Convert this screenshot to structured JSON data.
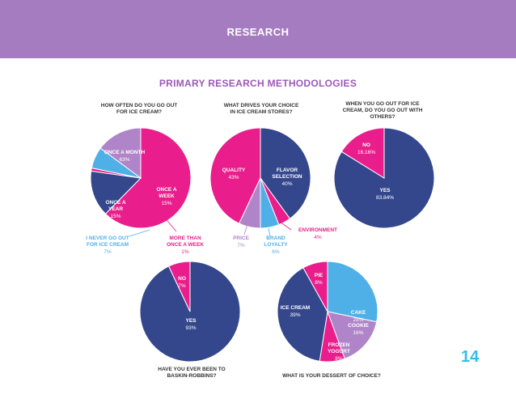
{
  "header": {
    "title": "RESEARCH",
    "subtitle": "PRIMARY RESEARCH METHODOLOGIES",
    "page_number": "14"
  },
  "colors": {
    "banner": "#a57cc0",
    "subtitle": "#9b59b6",
    "page_number": "#2ec0e6",
    "magenta": "#e91e8c",
    "navy": "#34478c",
    "lavender": "#b084c8",
    "lightblue": "#4fb0e8",
    "question": "#333333"
  },
  "chart_data": [
    {
      "type": "pie",
      "title": [
        "HOW OFTEN DO YOU GO OUT",
        "FOR ICE CREAM?"
      ],
      "slices": [
        {
          "label": [
            "ONCE A MONTH"
          ],
          "percent": "63%",
          "value": 63,
          "color": "#e91e8c",
          "text_color": "#ffffff"
        },
        {
          "label": [
            "ONCE A",
            "WEEK"
          ],
          "percent": "15%",
          "value": 15,
          "color": "#34478c",
          "text_color": "#ffffff"
        },
        {
          "label": [
            "MORE THAN",
            "ONCE A WEEK"
          ],
          "percent": "1%",
          "value": 1,
          "color": "#e91e8c",
          "text_color": "#e91e8c"
        },
        {
          "label": [
            "I NEVER GO OUT",
            "FOR ICE CREAM"
          ],
          "percent": "7%",
          "value": 7,
          "color": "#4fb0e8",
          "text_color": "#4fb0e8"
        },
        {
          "label": [
            "ONCE A",
            "YEAR"
          ],
          "percent": "15%",
          "value": 15,
          "color": "#b084c8",
          "text_color": "#ffffff"
        }
      ]
    },
    {
      "type": "pie",
      "title": [
        "WHAT DRIVES YOUR CHOICE",
        "IN ICE CREAM STORES?"
      ],
      "slices": [
        {
          "label": [
            "FLAVOR",
            "SELECTION"
          ],
          "percent": "40%",
          "value": 40,
          "color": "#34478c",
          "text_color": "#ffffff"
        },
        {
          "label": [
            "ENVIRONMENT"
          ],
          "percent": "4%",
          "value": 4,
          "color": "#e91e8c",
          "text_color": "#e91e8c"
        },
        {
          "label": [
            "BRAND",
            "LOYALTY"
          ],
          "percent": "6%",
          "value": 6,
          "color": "#4fb0e8",
          "text_color": "#4fb0e8"
        },
        {
          "label": [
            "PRICE"
          ],
          "percent": "7%",
          "value": 7,
          "color": "#b084c8",
          "text_color": "#b084c8"
        },
        {
          "label": [
            "QUALITY"
          ],
          "percent": "43%",
          "value": 43,
          "color": "#e91e8c",
          "text_color": "#ffffff"
        }
      ]
    },
    {
      "type": "pie",
      "title": [
        "WHEN YOU GO OUT FOR ICE",
        "CREAM, DO YOU GO OUT WITH",
        "OTHERS?"
      ],
      "slices": [
        {
          "label": [
            "YES"
          ],
          "percent": "83.84%",
          "value": 83.84,
          "color": "#34478c",
          "text_color": "#ffffff"
        },
        {
          "label": [
            "NO"
          ],
          "percent": "16.16%",
          "value": 16.16,
          "color": "#e91e8c",
          "text_color": "#ffffff"
        }
      ]
    },
    {
      "type": "pie",
      "title": [
        "HAVE YOU EVER BEEN TO",
        "BASKIN-ROBBINS?"
      ],
      "slices": [
        {
          "label": [
            "YES"
          ],
          "percent": "93%",
          "value": 93,
          "color": "#34478c",
          "text_color": "#ffffff"
        },
        {
          "label": [
            "NO"
          ],
          "percent": "7%",
          "value": 7,
          "color": "#e91e8c",
          "text_color": "#ffffff"
        }
      ]
    },
    {
      "type": "pie",
      "title": [
        "WHAT IS YOUR DESSERT OF CHOICE?"
      ],
      "slices": [
        {
          "label": [
            "CAKE"
          ],
          "percent": "28%",
          "value": 28,
          "color": "#4fb0e8",
          "text_color": "#ffffff"
        },
        {
          "label": [
            "COOKIE"
          ],
          "percent": "16%",
          "value": 16,
          "color": "#b084c8",
          "text_color": "#ffffff"
        },
        {
          "label": [
            "FROZEN",
            "YOGURT"
          ],
          "percent": "8%",
          "value": 8,
          "color": "#e91e8c",
          "text_color": "#ffffff"
        },
        {
          "label": [
            "ICE CREAM"
          ],
          "percent": "39%",
          "value": 39,
          "color": "#34478c",
          "text_color": "#ffffff"
        },
        {
          "label": [
            "PIE"
          ],
          "percent": "8%",
          "value": 8,
          "color": "#e91e8c",
          "text_color": "#ffffff"
        }
      ]
    }
  ]
}
